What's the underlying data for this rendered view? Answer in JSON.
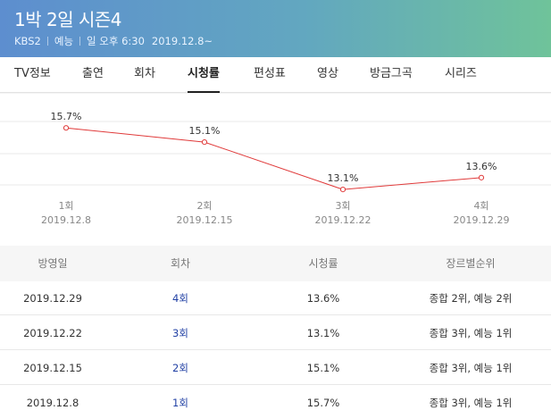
{
  "header": {
    "title": "1박 2일 시즌4",
    "channel": "KBS2",
    "genre": "예능",
    "schedule": "일 오후 6:30",
    "start_date": "2019.12.8~",
    "colors": {
      "gradient_start": "#5d8ecf",
      "gradient_end": "#6fc39a"
    }
  },
  "tabs": [
    {
      "label": "TV정보",
      "active": false
    },
    {
      "label": "출연",
      "active": false
    },
    {
      "label": "회차",
      "active": false
    },
    {
      "label": "시청률",
      "active": true
    },
    {
      "label": "편성표",
      "active": false
    },
    {
      "label": "영상",
      "active": false
    },
    {
      "label": "방금그곡",
      "active": false
    },
    {
      "label": "시리즈",
      "active": false
    }
  ],
  "chart_data": {
    "type": "line",
    "categories": [
      "1회",
      "2회",
      "3회",
      "4회"
    ],
    "dates": [
      "2019.12.8",
      "2019.12.15",
      "2019.12.22",
      "2019.12.29"
    ],
    "values": [
      15.7,
      15.1,
      13.1,
      13.6
    ],
    "value_labels": [
      "15.7%",
      "15.1%",
      "13.1%",
      "13.6%"
    ],
    "ylim": [
      12.5,
      16.5
    ],
    "line_color": "#e03a3a",
    "grid": true
  },
  "table": {
    "headers": [
      "방영일",
      "회차",
      "시청률",
      "장르별순위"
    ],
    "rows": [
      {
        "date": "2019.12.29",
        "episode": "4회",
        "rating": "13.6%",
        "rank": "종합 2위, 예능 2위"
      },
      {
        "date": "2019.12.22",
        "episode": "3회",
        "rating": "13.1%",
        "rank": "종합 3위, 예능 1위"
      },
      {
        "date": "2019.12.15",
        "episode": "2회",
        "rating": "15.1%",
        "rank": "종합 3위, 예능 1위"
      },
      {
        "date": "2019.12.8",
        "episode": "1회",
        "rating": "15.7%",
        "rank": "종합 3위, 예능 1위"
      }
    ]
  }
}
